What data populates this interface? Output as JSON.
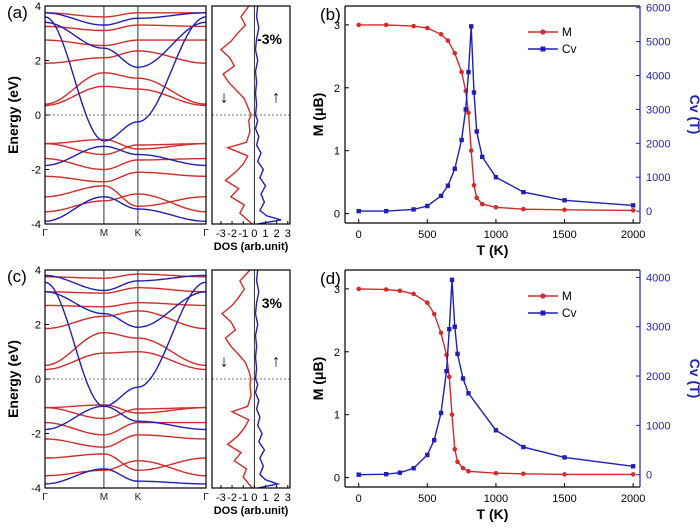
{
  "figure": {
    "colors": {
      "red": "#d42a2a",
      "blue": "#1f1fb4",
      "axis": "#000000"
    }
  },
  "chart_data": [
    {
      "panel": "(a)",
      "type": "line",
      "subtype": "band-structure",
      "ylabel": "Energy (eV)",
      "ylim": [
        -4,
        4
      ],
      "yticks": [
        -4,
        -2,
        0,
        2,
        4
      ],
      "kpoints": [
        "Γ",
        "M",
        "K",
        "Γ"
      ],
      "kpoint_positions": [
        0,
        1,
        1.577,
        2.732
      ],
      "fermi_level": 0,
      "series": [
        {
          "spin": "majority",
          "color": "#d42a2a",
          "energies_at_kpoints": [
            [
              -3.55,
              -3.15,
              -2.9,
              -3.55
            ],
            [
              -3.0,
              -2.6,
              -3.35,
              -3.0
            ],
            [
              -2.25,
              -2.45,
              -2.1,
              -2.25
            ],
            [
              -1.6,
              -2.0,
              -1.65,
              -1.6
            ],
            [
              -1.05,
              -1.45,
              -1.1,
              -1.05
            ],
            [
              -1.05,
              -0.9,
              -1.25,
              -1.05
            ],
            [
              0.35,
              1.05,
              0.95,
              0.35
            ],
            [
              0.4,
              1.55,
              1.35,
              0.4
            ],
            [
              1.9,
              2.1,
              2.35,
              1.9
            ],
            [
              2.75,
              2.55,
              2.75,
              2.75
            ],
            [
              3.25,
              3.1,
              3.3,
              3.25
            ],
            [
              3.75,
              3.6,
              3.75,
              3.75
            ]
          ]
        },
        {
          "spin": "minority",
          "color": "#1f1fb4",
          "energies_at_kpoints": [
            [
              -3.9,
              -3.0,
              -3.45,
              -3.9
            ],
            [
              -1.85,
              -1.15,
              -1.45,
              -1.85
            ],
            [
              3.6,
              -0.95,
              -0.25,
              3.6
            ],
            [
              3.4,
              2.45,
              1.75,
              3.4
            ],
            [
              3.75,
              3.3,
              3.55,
              3.75
            ]
          ]
        }
      ]
    },
    {
      "panel": "(a)",
      "type": "line",
      "subtype": "density-of-states",
      "xlabel": "DOS (arb.unit)",
      "xticks": [
        -3,
        -2,
        -1,
        0,
        1,
        2,
        3
      ],
      "xtick_labels": [
        "-3",
        "-2",
        "-1",
        "0",
        "1",
        "2",
        "3"
      ],
      "xlim": [
        -3.8,
        3.2
      ],
      "annotation": "-3%",
      "arrows": {
        "left": "↓",
        "right": "↑"
      },
      "series": [
        {
          "spin": "down",
          "color": "#d42a2a",
          "energy": [
            -4.0,
            -3.6,
            -3.3,
            -3.0,
            -2.7,
            -2.4,
            -2.1,
            -1.8,
            -1.5,
            -1.2,
            -1.0,
            -0.6,
            -0.2,
            0.0,
            0.3,
            0.6,
            0.9,
            1.2,
            1.5,
            1.8,
            2.1,
            2.4,
            2.7,
            3.0,
            3.3,
            3.6,
            4.0
          ],
          "dos": [
            -0.2,
            -1.3,
            -0.9,
            -2.1,
            -1.4,
            -2.6,
            -1.7,
            -1.0,
            -0.6,
            -2.4,
            -0.7,
            -0.4,
            -0.5,
            -0.3,
            -0.6,
            -0.9,
            -1.6,
            -2.3,
            -2.8,
            -1.8,
            -2.2,
            -3.0,
            -2.1,
            -1.5,
            -0.8,
            -1.2,
            -0.5
          ]
        },
        {
          "spin": "up",
          "color": "#1f1fb4",
          "energy": [
            -4.0,
            -3.85,
            -3.7,
            -3.5,
            -3.2,
            -2.9,
            -2.6,
            -2.3,
            -2.0,
            -1.7,
            -1.4,
            -1.1,
            -0.8,
            -0.5,
            -0.2,
            0.0,
            0.4,
            0.8,
            1.2,
            1.6,
            2.0,
            2.4,
            2.8,
            3.2,
            3.6,
            4.0
          ],
          "dos": [
            0.3,
            2.4,
            1.1,
            0.5,
            0.9,
            0.6,
            1.0,
            0.5,
            0.8,
            0.3,
            0.6,
            0.2,
            0.4,
            0.1,
            0.3,
            0.1,
            0.2,
            0.1,
            0.2,
            0.1,
            0.3,
            0.1,
            0.2,
            0.4,
            0.2,
            0.3
          ]
        }
      ]
    },
    {
      "panel": "(b)",
      "type": "line",
      "xlabel": "T (K)",
      "ylabel": "M (μB)",
      "y2label": "Cv (T)",
      "xlim": [
        -100,
        2050
      ],
      "ylim": [
        -0.15,
        3.3
      ],
      "y2lim": [
        -350,
        6050
      ],
      "xticks": [
        0,
        500,
        1000,
        1500,
        2000
      ],
      "yticks": [
        0,
        1,
        2,
        3
      ],
      "y2ticks": [
        0,
        1000,
        2000,
        3000,
        4000,
        5000,
        6000
      ],
      "legend": [
        "M",
        "Cv"
      ],
      "legend_position": "top-right",
      "Tc": 820,
      "series": [
        {
          "name": "M",
          "axis": "left",
          "color": "#d42a2a",
          "marker": "circle",
          "x": [
            0,
            200,
            400,
            500,
            600,
            650,
            700,
            750,
            780,
            800,
            820,
            840,
            860,
            900,
            1000,
            1200,
            1500,
            2000
          ],
          "values": [
            3.0,
            3.0,
            2.98,
            2.95,
            2.85,
            2.75,
            2.55,
            2.25,
            1.95,
            1.6,
            1.0,
            0.45,
            0.25,
            0.15,
            0.1,
            0.07,
            0.06,
            0.05
          ]
        },
        {
          "name": "Cv",
          "axis": "right",
          "color": "#1f1fb4",
          "marker": "square",
          "x": [
            0,
            200,
            400,
            500,
            600,
            650,
            700,
            750,
            780,
            800,
            820,
            840,
            860,
            900,
            1000,
            1200,
            1500,
            2000
          ],
          "values": [
            0,
            0,
            50,
            150,
            450,
            750,
            1250,
            2100,
            3000,
            4100,
            5450,
            3500,
            2350,
            1600,
            1000,
            560,
            320,
            170
          ]
        }
      ]
    },
    {
      "panel": "(c)",
      "type": "line",
      "subtype": "band-structure",
      "ylabel": "Energy (eV)",
      "ylim": [
        -4,
        4
      ],
      "yticks": [
        -4,
        -2,
        0,
        2,
        4
      ],
      "kpoints": [
        "Γ",
        "M",
        "K",
        "Γ"
      ],
      "kpoint_positions": [
        0,
        1,
        1.577,
        2.732
      ],
      "fermi_level": 0,
      "series": [
        {
          "spin": "majority",
          "color": "#d42a2a",
          "energies_at_kpoints": [
            [
              -3.55,
              -3.35,
              -3.0,
              -3.55
            ],
            [
              -2.9,
              -2.75,
              -3.35,
              -2.9
            ],
            [
              -2.2,
              -2.5,
              -2.05,
              -2.2
            ],
            [
              -1.6,
              -2.05,
              -1.6,
              -1.6
            ],
            [
              -1.05,
              -1.45,
              -1.1,
              -1.05
            ],
            [
              -1.05,
              -0.95,
              -1.25,
              -1.05
            ],
            [
              0.35,
              0.95,
              1.0,
              0.35
            ],
            [
              0.5,
              1.7,
              1.5,
              0.5
            ],
            [
              1.85,
              2.3,
              2.5,
              1.85
            ],
            [
              2.7,
              2.65,
              2.8,
              2.7
            ],
            [
              3.2,
              3.15,
              3.35,
              3.2
            ],
            [
              3.75,
              3.7,
              3.85,
              3.75
            ]
          ]
        },
        {
          "spin": "minority",
          "color": "#1f1fb4",
          "energies_at_kpoints": [
            [
              -3.85,
              -3.3,
              -3.75,
              -3.85
            ],
            [
              -1.85,
              -1.0,
              -1.55,
              -1.85
            ],
            [
              3.55,
              -1.0,
              -0.3,
              3.55
            ],
            [
              3.2,
              2.4,
              1.9,
              3.2
            ],
            [
              3.8,
              3.25,
              3.6,
              3.8
            ]
          ]
        }
      ]
    },
    {
      "panel": "(c)",
      "type": "line",
      "subtype": "density-of-states",
      "xlabel": "DOS (arb.unit)",
      "xticks": [
        -3,
        -2,
        -1,
        0,
        1,
        2,
        3
      ],
      "xtick_labels": [
        "-3",
        "-2",
        "-1",
        "0",
        "1",
        "2",
        "3"
      ],
      "xlim": [
        -3.8,
        3.2
      ],
      "annotation": "3%",
      "arrows": {
        "left": "↓",
        "right": "↑"
      },
      "series": [
        {
          "spin": "down",
          "color": "#d42a2a",
          "energy": [
            -4.0,
            -3.6,
            -3.3,
            -3.0,
            -2.7,
            -2.4,
            -2.1,
            -1.8,
            -1.5,
            -1.2,
            -1.0,
            -0.6,
            -0.2,
            0.0,
            0.3,
            0.6,
            0.9,
            1.2,
            1.5,
            1.8,
            2.1,
            2.4,
            2.7,
            3.0,
            3.3,
            3.6,
            4.0
          ],
          "dos": [
            -0.2,
            -1.0,
            -0.7,
            -1.8,
            -1.2,
            -2.4,
            -1.5,
            -0.9,
            -0.5,
            -2.0,
            -0.6,
            -0.3,
            -0.4,
            -0.3,
            -0.5,
            -0.8,
            -1.4,
            -2.1,
            -2.6,
            -1.7,
            -2.1,
            -2.9,
            -2.0,
            -1.4,
            -0.9,
            -1.3,
            -0.4
          ]
        },
        {
          "spin": "up",
          "color": "#1f1fb4",
          "energy": [
            -4.0,
            -3.85,
            -3.7,
            -3.5,
            -3.2,
            -2.9,
            -2.6,
            -2.3,
            -2.0,
            -1.7,
            -1.4,
            -1.1,
            -0.8,
            -0.5,
            -0.2,
            0.0,
            0.4,
            0.8,
            1.2,
            1.6,
            2.0,
            2.4,
            2.8,
            3.2,
            3.6,
            4.0
          ],
          "dos": [
            0.3,
            2.1,
            1.0,
            0.5,
            0.8,
            0.5,
            0.9,
            0.4,
            0.7,
            0.3,
            0.5,
            0.2,
            0.4,
            0.1,
            0.3,
            0.1,
            0.2,
            0.1,
            0.2,
            0.1,
            0.3,
            0.1,
            0.2,
            0.4,
            0.2,
            0.3
          ]
        }
      ]
    },
    {
      "panel": "(d)",
      "type": "line",
      "xlabel": "T (K)",
      "ylabel": "M (μB)",
      "y2label": "Cv (T)",
      "xlim": [
        -100,
        2050
      ],
      "ylim": [
        -0.15,
        3.3
      ],
      "y2lim": [
        -250,
        4150
      ],
      "xticks": [
        0,
        500,
        1000,
        1500,
        2000
      ],
      "yticks": [
        0,
        1,
        2,
        3
      ],
      "y2ticks": [
        0,
        1000,
        2000,
        3000,
        4000
      ],
      "legend": [
        "M",
        "Cv"
      ],
      "legend_position": "top-right",
      "Tc": 680,
      "series": [
        {
          "name": "M",
          "axis": "left",
          "color": "#d42a2a",
          "marker": "circle",
          "x": [
            0,
            200,
            300,
            400,
            500,
            550,
            600,
            640,
            660,
            680,
            700,
            720,
            760,
            800,
            1000,
            1200,
            1500,
            2000
          ],
          "values": [
            3.0,
            2.99,
            2.97,
            2.92,
            2.78,
            2.6,
            2.3,
            1.95,
            1.6,
            1.0,
            0.45,
            0.25,
            0.15,
            0.1,
            0.07,
            0.06,
            0.05,
            0.05
          ]
        },
        {
          "name": "Cv",
          "axis": "right",
          "color": "#1f1fb4",
          "marker": "square",
          "x": [
            0,
            200,
            300,
            400,
            500,
            550,
            600,
            640,
            660,
            680,
            700,
            720,
            760,
            800,
            1000,
            1200,
            1500,
            2000
          ],
          "values": [
            0,
            10,
            40,
            130,
            400,
            700,
            1250,
            2100,
            2950,
            3950,
            3000,
            2450,
            1950,
            1650,
            900,
            560,
            350,
            170
          ]
        }
      ]
    }
  ]
}
